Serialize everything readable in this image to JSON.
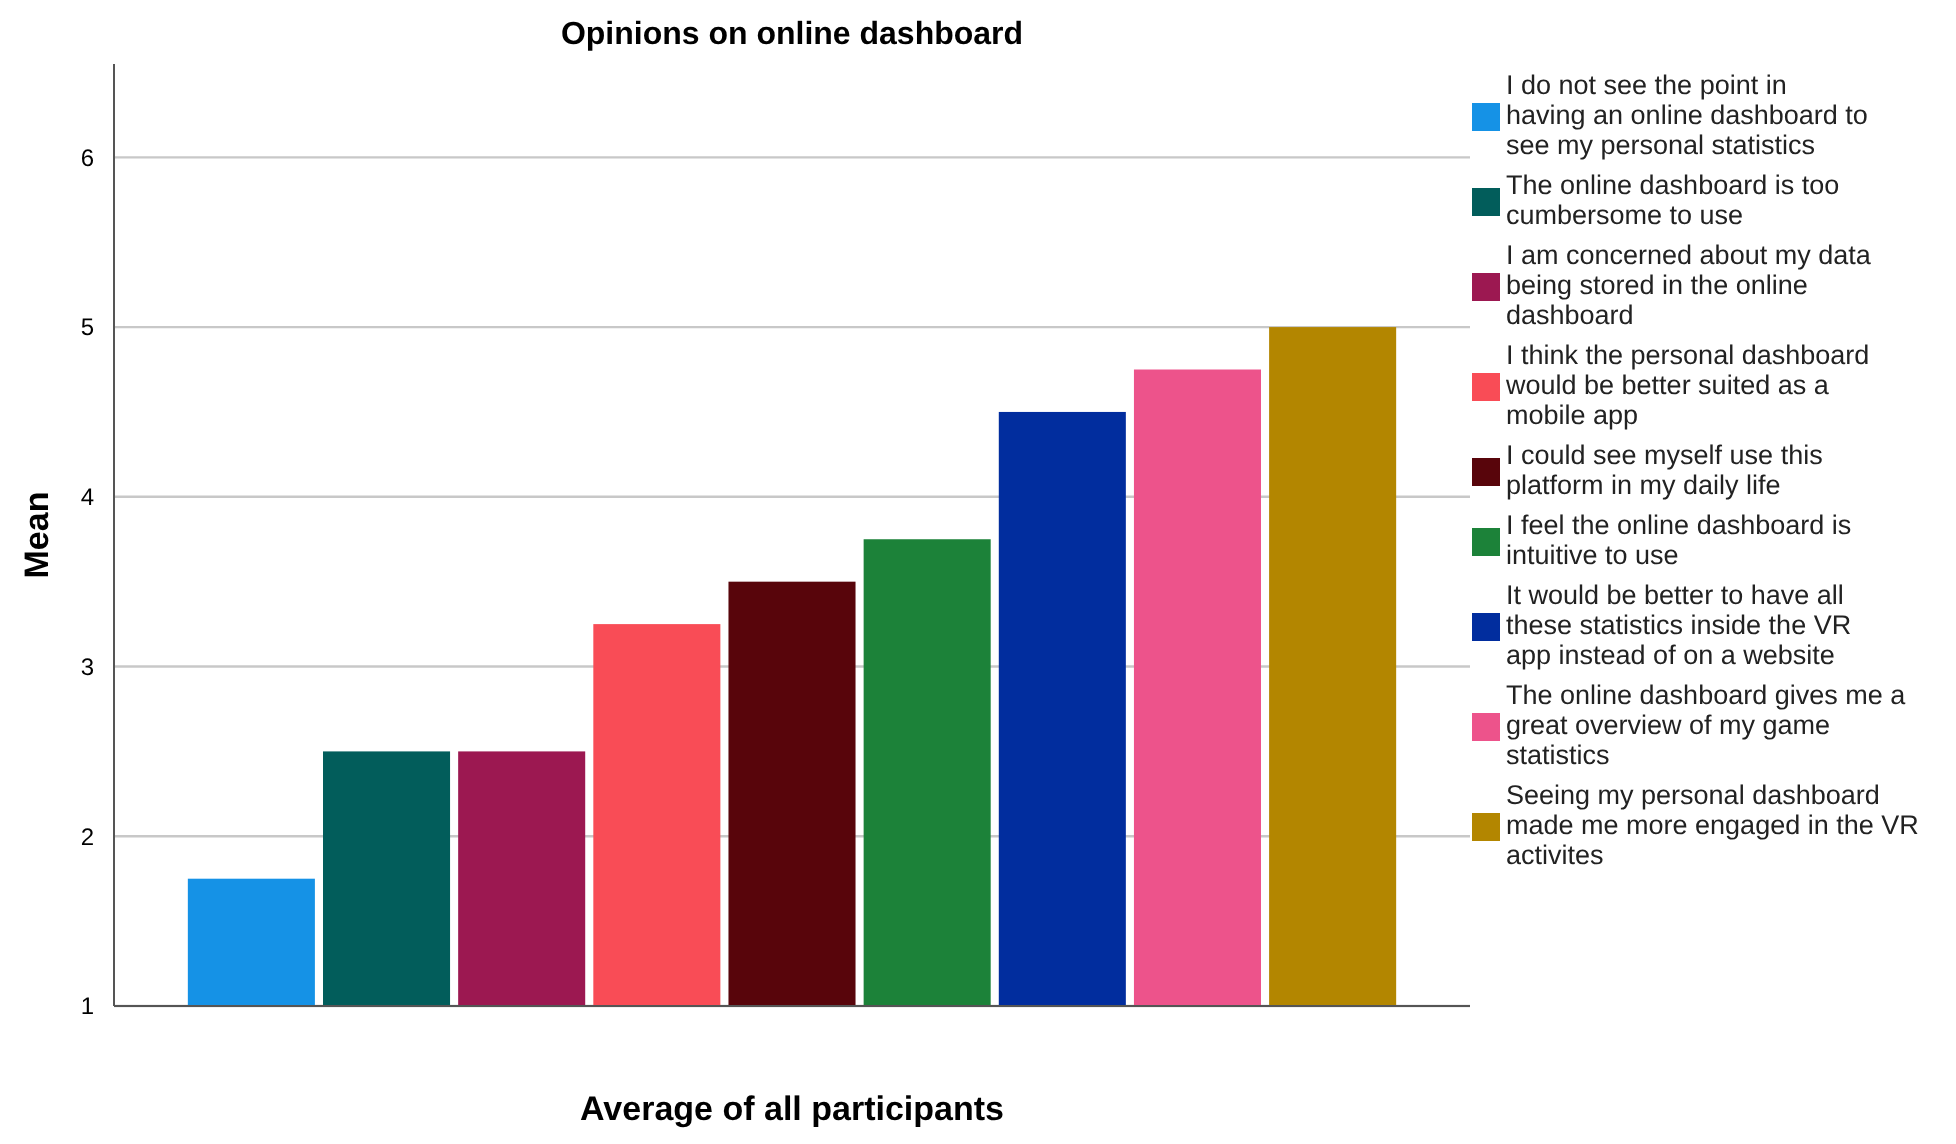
{
  "chart_data": {
    "type": "bar",
    "title": "Opinions on online dashboard",
    "xlabel": "Average of all participants",
    "ylabel": "Mean",
    "categories": [
      null
    ],
    "series": [
      {
        "name": "I do not see the point in having an online dashboard to see my personal statistics",
        "color": "#1592e6",
        "values": [
          1.75
        ]
      },
      {
        "name": "The online dashboard is too cumbersome to use",
        "color": "#025d5b",
        "values": [
          2.5
        ]
      },
      {
        "name": "I am concerned about my data being stored in the online dashboard",
        "color": "#9c1851",
        "values": [
          2.5
        ]
      },
      {
        "name": "I think the personal dashboard would be better suited as a mobile app",
        "color": "#f94c56",
        "values": [
          3.25
        ]
      },
      {
        "name": "I could see myself use this platform in my daily life",
        "color": "#58050b",
        "values": [
          3.5
        ]
      },
      {
        "name": "I feel the online dashboard is intuitive to use",
        "color": "#1c8239",
        "values": [
          3.75
        ]
      },
      {
        "name": "It would be better to have all these statistics inside the VR app instead of on a website",
        "color": "#012d9e",
        "values": [
          4.5
        ]
      },
      {
        "name": "The online dashboard gives me a great overview of my game statistics",
        "color": "#ed538b",
        "values": [
          4.75
        ]
      },
      {
        "name": "Seeing my personal dashboard made me more engaged in the VR activites",
        "color": "#b38600",
        "values": [
          5
        ]
      }
    ],
    "ylim": [
      1,
      6.55
    ],
    "yticks": [
      1,
      2,
      3,
      4,
      5,
      6
    ],
    "grid": "y",
    "legend": "right"
  }
}
